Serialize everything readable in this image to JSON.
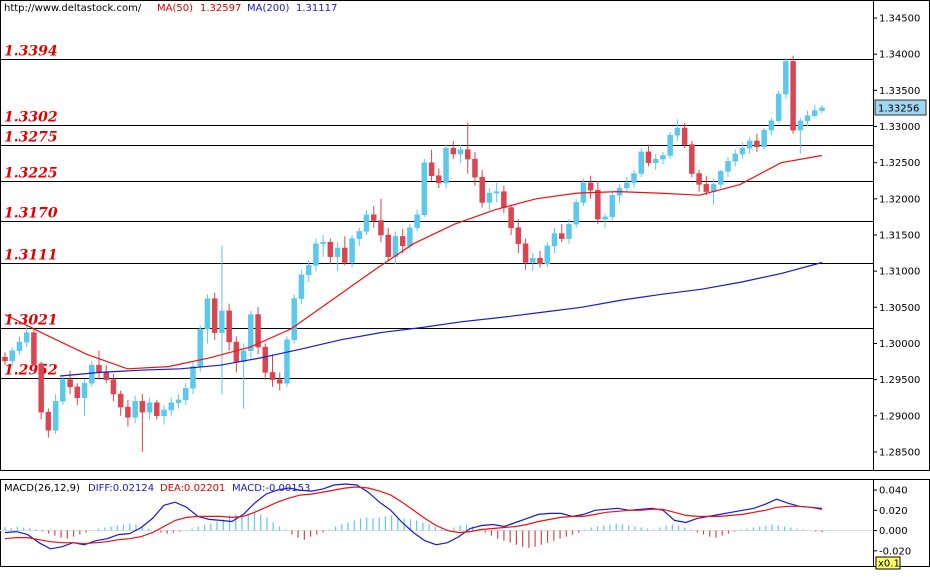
{
  "chart_data": [
    {
      "type": "candlestick",
      "header": {
        "url": "http://www.deltastock.com/",
        "ma50_label": "MA(50)",
        "ma50_value": "1.32597",
        "ma200_label": "MA(200)",
        "ma200_value": "1.31117"
      },
      "y_ticks": [
        "1.28500",
        "1.29000",
        "1.29500",
        "1.30000",
        "1.30500",
        "1.31000",
        "1.31500",
        "1.32000",
        "1.32500",
        "1.33000",
        "1.33500",
        "1.34000",
        "1.34500"
      ],
      "ylim": [
        1.2825,
        1.3475
      ],
      "current_price": "1.33256",
      "levels": [
        {
          "label": "1.3394",
          "value": 1.3394
        },
        {
          "label": "1.3302",
          "value": 1.3302
        },
        {
          "label": "1.3275",
          "value": 1.3275
        },
        {
          "label": "1.3225",
          "value": 1.3225
        },
        {
          "label": "1.3170",
          "value": 1.317
        },
        {
          "label": "1.3111",
          "value": 1.3111
        },
        {
          "label": "1.3021",
          "value": 1.3021
        },
        {
          "label": "1.2952",
          "value": 1.2952
        }
      ],
      "candles": [
        [
          1.2981,
          1.2988,
          1.297,
          1.2976
        ],
        [
          1.2976,
          1.2995,
          1.2968,
          1.299
        ],
        [
          1.299,
          1.301,
          1.2985,
          1.3002
        ],
        [
          1.3002,
          1.3025,
          1.2995,
          1.3015
        ],
        [
          1.3015,
          1.302,
          1.2968,
          1.2972
        ],
        [
          1.2972,
          1.2975,
          1.2895,
          1.2905
        ],
        [
          1.2905,
          1.291,
          1.287,
          1.288
        ],
        [
          1.288,
          1.293,
          1.2875,
          1.292
        ],
        [
          1.292,
          1.2955,
          1.2915,
          1.295
        ],
        [
          1.295,
          1.2962,
          1.293,
          1.294
        ],
        [
          1.294,
          1.2945,
          1.2915,
          1.2925
        ],
        [
          1.2925,
          1.295,
          1.29,
          1.2945
        ],
        [
          1.2945,
          1.2975,
          1.294,
          1.297
        ],
        [
          1.297,
          1.299,
          1.295,
          1.296
        ],
        [
          1.296,
          1.297,
          1.2945,
          1.295
        ],
        [
          1.295,
          1.2958,
          1.292,
          1.293
        ],
        [
          1.293,
          1.2935,
          1.29,
          1.2912
        ],
        [
          1.2912,
          1.2922,
          1.2885,
          1.2898
        ],
        [
          1.2898,
          1.2928,
          1.289,
          1.292
        ],
        [
          1.292,
          1.293,
          1.285,
          1.2905
        ],
        [
          1.2905,
          1.2925,
          1.2895,
          1.2918
        ],
        [
          1.2918,
          1.2922,
          1.2895,
          1.29
        ],
        [
          1.29,
          1.2915,
          1.2888,
          1.2908
        ],
        [
          1.2908,
          1.2925,
          1.29,
          1.2918
        ],
        [
          1.2918,
          1.293,
          1.291,
          1.2922
        ],
        [
          1.2922,
          1.2945,
          1.2915,
          1.2938
        ],
        [
          1.2938,
          1.2975,
          1.293,
          1.2968
        ],
        [
          1.2968,
          1.3025,
          1.296,
          1.302
        ],
        [
          1.302,
          1.3068,
          1.3,
          1.3062
        ],
        [
          1.3062,
          1.307,
          1.3005,
          1.3015
        ],
        [
          1.3015,
          1.3135,
          1.293,
          1.3045
        ],
        [
          1.3045,
          1.3055,
          1.299,
          1.3002
        ],
        [
          1.3002,
          1.301,
          1.296,
          1.2975
        ],
        [
          1.2975,
          1.3,
          1.291,
          1.299
        ],
        [
          1.299,
          1.3045,
          1.298,
          1.304
        ],
        [
          1.304,
          1.305,
          1.2985,
          1.2995
        ],
        [
          1.2995,
          1.3,
          1.295,
          1.296
        ],
        [
          1.296,
          1.2985,
          1.294,
          1.295
        ],
        [
          1.295,
          1.296,
          1.2935,
          1.2945
        ],
        [
          1.2945,
          1.301,
          1.294,
          1.3005
        ],
        [
          1.3005,
          1.3068,
          1.3,
          1.3062
        ],
        [
          1.3062,
          1.3102,
          1.3055,
          1.3095
        ],
        [
          1.3095,
          1.3115,
          1.3085,
          1.3108
        ],
        [
          1.3108,
          1.3145,
          1.31,
          1.3138
        ],
        [
          1.3138,
          1.315,
          1.312,
          1.314
        ],
        [
          1.314,
          1.3145,
          1.311,
          1.312
        ],
        [
          1.312,
          1.314,
          1.31,
          1.3132
        ],
        [
          1.3132,
          1.3148,
          1.3108,
          1.3112
        ],
        [
          1.3112,
          1.315,
          1.3105,
          1.3145
        ],
        [
          1.3145,
          1.316,
          1.3135,
          1.3155
        ],
        [
          1.3155,
          1.3185,
          1.315,
          1.3178
        ],
        [
          1.3178,
          1.319,
          1.316,
          1.317
        ],
        [
          1.317,
          1.32,
          1.314,
          1.315
        ],
        [
          1.315,
          1.316,
          1.3115,
          1.312
        ],
        [
          1.312,
          1.3155,
          1.311,
          1.3148
        ],
        [
          1.3148,
          1.3158,
          1.3125,
          1.3135
        ],
        [
          1.3135,
          1.3165,
          1.313,
          1.316
        ],
        [
          1.316,
          1.3185,
          1.3155,
          1.3178
        ],
        [
          1.3178,
          1.3255,
          1.3175,
          1.325
        ],
        [
          1.325,
          1.3268,
          1.3225,
          1.3232
        ],
        [
          1.3232,
          1.3242,
          1.3215,
          1.3222
        ],
        [
          1.3222,
          1.3275,
          1.3215,
          1.327
        ],
        [
          1.327,
          1.328,
          1.3255,
          1.3262
        ],
        [
          1.3262,
          1.3275,
          1.325,
          1.3268
        ],
        [
          1.3268,
          1.3305,
          1.3235,
          1.3255
        ],
        [
          1.3255,
          1.3265,
          1.3218,
          1.323
        ],
        [
          1.323,
          1.324,
          1.3188,
          1.3195
        ],
        [
          1.3195,
          1.3215,
          1.3185,
          1.3208
        ],
        [
          1.3208,
          1.3222,
          1.3195,
          1.321
        ],
        [
          1.321,
          1.3218,
          1.318,
          1.3188
        ],
        [
          1.3188,
          1.3192,
          1.315,
          1.316
        ],
        [
          1.316,
          1.3172,
          1.3125,
          1.3138
        ],
        [
          1.3138,
          1.3145,
          1.3102,
          1.3112
        ],
        [
          1.3112,
          1.3125,
          1.31,
          1.3118
        ],
        [
          1.3118,
          1.3128,
          1.3105,
          1.311
        ],
        [
          1.311,
          1.314,
          1.3105,
          1.3135
        ],
        [
          1.3135,
          1.316,
          1.3125,
          1.3152
        ],
        [
          1.3152,
          1.3165,
          1.314,
          1.3145
        ],
        [
          1.3145,
          1.3172,
          1.3138,
          1.3165
        ],
        [
          1.3165,
          1.32,
          1.316,
          1.3195
        ],
        [
          1.3195,
          1.3228,
          1.319,
          1.3222
        ],
        [
          1.3222,
          1.3232,
          1.32,
          1.3212
        ],
        [
          1.3212,
          1.3225,
          1.3165,
          1.3172
        ],
        [
          1.3172,
          1.318,
          1.316,
          1.3175
        ],
        [
          1.3175,
          1.321,
          1.317,
          1.3205
        ],
        [
          1.3205,
          1.322,
          1.3195,
          1.3215
        ],
        [
          1.3215,
          1.323,
          1.321,
          1.3222
        ],
        [
          1.3222,
          1.324,
          1.3215,
          1.3235
        ],
        [
          1.3235,
          1.327,
          1.323,
          1.3265
        ],
        [
          1.3265,
          1.3275,
          1.3245,
          1.325
        ],
        [
          1.325,
          1.3262,
          1.324,
          1.3255
        ],
        [
          1.3255,
          1.3265,
          1.3248,
          1.326
        ],
        [
          1.326,
          1.3292,
          1.3255,
          1.3288
        ],
        [
          1.3288,
          1.331,
          1.328,
          1.3298
        ],
        [
          1.3298,
          1.3305,
          1.327,
          1.3275
        ],
        [
          1.3275,
          1.328,
          1.323,
          1.3235
        ],
        [
          1.3235,
          1.324,
          1.321,
          1.322
        ],
        [
          1.322,
          1.3232,
          1.3205,
          1.321
        ],
        [
          1.321,
          1.3228,
          1.3192,
          1.322
        ],
        [
          1.322,
          1.324,
          1.3215,
          1.3238
        ],
        [
          1.3238,
          1.3258,
          1.323,
          1.3252
        ],
        [
          1.3252,
          1.3268,
          1.3245,
          1.3262
        ],
        [
          1.3262,
          1.3278,
          1.3255,
          1.327
        ],
        [
          1.327,
          1.3285,
          1.3262,
          1.328
        ],
        [
          1.328,
          1.329,
          1.3265,
          1.3272
        ],
        [
          1.3272,
          1.3298,
          1.3268,
          1.3295
        ],
        [
          1.3295,
          1.3312,
          1.3288,
          1.3308
        ],
        [
          1.3308,
          1.335,
          1.3305,
          1.3345
        ],
        [
          1.3345,
          1.3395,
          1.3338,
          1.339
        ],
        [
          1.339,
          1.3398,
          1.329,
          1.3295
        ],
        [
          1.3295,
          1.3312,
          1.3262,
          1.3308
        ],
        [
          1.3308,
          1.3322,
          1.33,
          1.3315
        ],
        [
          1.3315,
          1.333,
          1.3312,
          1.3322
        ],
        [
          1.3322,
          1.333,
          1.3318,
          1.3326
        ]
      ],
      "ma50": [
        1.304,
        1.3012,
        1.2985,
        1.2965,
        1.2968,
        1.298,
        1.2995,
        1.302,
        1.306,
        1.31,
        1.3138,
        1.3165,
        1.3185,
        1.32,
        1.3208,
        1.321,
        1.3208,
        1.3205,
        1.322,
        1.325,
        1.326
      ],
      "ma200": [
        1.2955,
        1.296,
        1.2963,
        1.2965,
        1.297,
        1.298,
        1.2992,
        1.3005,
        1.3015,
        1.3022,
        1.303,
        1.3036,
        1.3043,
        1.305,
        1.306,
        1.3068,
        1.3075,
        1.3085,
        1.3097,
        1.3112
      ],
      "macd": {
        "label": "MACD(26,12,9)",
        "diff_label": "DIFF:0.02124",
        "dea_label": "DEA:0.02201",
        "macd_label": "MACD:-0.00153",
        "y_ticks": [
          "0.040",
          "0.020",
          "0.000",
          "-0.020"
        ],
        "ylim": [
          -0.036,
          0.046
        ],
        "scale_label": "x0.1",
        "diff": [
          -0.002,
          -0.001,
          -0.004,
          -0.012,
          -0.018,
          -0.016,
          -0.012,
          -0.014,
          -0.01,
          -0.008,
          -0.004,
          -0.003,
          0.003,
          0.012,
          0.025,
          0.028,
          0.023,
          0.014,
          0.011,
          0.01,
          0.009,
          0.016,
          0.027,
          0.036,
          0.04,
          0.042,
          0.04,
          0.039,
          0.041,
          0.045,
          0.046,
          0.045,
          0.038,
          0.028,
          0.02,
          0.008,
          -0.002,
          -0.01,
          -0.014,
          -0.012,
          -0.006,
          0.002,
          0.005,
          0.006,
          0.004,
          0.008,
          0.012,
          0.016,
          0.017,
          0.017,
          0.014,
          0.016,
          0.02,
          0.021,
          0.022,
          0.02,
          0.021,
          0.022,
          0.02,
          0.01,
          0.008,
          0.012,
          0.014,
          0.016,
          0.018,
          0.02,
          0.022,
          0.026,
          0.031,
          0.027,
          0.024,
          0.023,
          0.021
        ],
        "dea": [
          -0.008,
          -0.007,
          -0.007,
          -0.009,
          -0.011,
          -0.012,
          -0.012,
          -0.013,
          -0.012,
          -0.011,
          -0.009,
          -0.008,
          -0.006,
          -0.002,
          0.004,
          0.01,
          0.013,
          0.014,
          0.014,
          0.014,
          0.013,
          0.014,
          0.018,
          0.023,
          0.028,
          0.032,
          0.035,
          0.036,
          0.038,
          0.04,
          0.042,
          0.043,
          0.042,
          0.039,
          0.035,
          0.028,
          0.02,
          0.012,
          0.005,
          0.0,
          -0.002,
          -0.001,
          0.001,
          0.002,
          0.003,
          0.004,
          0.006,
          0.009,
          0.011,
          0.013,
          0.014,
          0.014,
          0.016,
          0.018,
          0.019,
          0.02,
          0.02,
          0.021,
          0.021,
          0.018,
          0.015,
          0.014,
          0.014,
          0.014,
          0.015,
          0.016,
          0.018,
          0.02,
          0.023,
          0.024,
          0.024,
          0.023,
          0.022
        ],
        "hist": [
          0.0035,
          0.0025,
          0.0035,
          0.003,
          0.0025,
          0.0015,
          -0.001,
          -0.003,
          -0.005,
          -0.007,
          -0.008,
          -0.006,
          -0.004,
          -0.002,
          0.0,
          0.002,
          0.003,
          0.004,
          0.005,
          0.006,
          0.007,
          0.006,
          0.004,
          0.002,
          -0.001,
          -0.002,
          -0.003,
          -0.002,
          -0.001,
          0.0,
          0.002,
          0.004,
          0.006,
          0.007,
          0.009,
          0.011,
          0.015,
          0.016,
          0.014,
          0.017,
          0.018,
          0.016,
          0.013,
          0.008,
          0.004,
          0.001,
          -0.004,
          -0.007,
          -0.009,
          -0.006,
          -0.004,
          -0.002,
          0.001,
          0.004,
          0.006,
          0.008,
          0.01,
          0.012,
          0.013,
          0.012,
          0.013,
          0.014,
          0.015,
          0.013,
          0.012,
          0.011,
          0.01,
          0.008,
          0.006,
          0.004,
          0.002,
          0.001,
          0.003,
          0.005,
          0.006,
          0.004,
          0.002,
          -0.002,
          -0.005,
          -0.008,
          -0.01,
          -0.012,
          -0.014,
          -0.016,
          -0.017,
          -0.016,
          -0.014,
          -0.012,
          -0.01,
          -0.008,
          -0.006,
          -0.004,
          -0.002,
          0.001,
          0.003,
          0.004,
          0.005,
          0.006,
          0.007,
          0.006,
          0.005,
          0.004,
          0.003,
          0.002,
          0.001,
          0.003,
          0.005,
          0.006,
          0.005,
          0.003,
          0.001,
          -0.002,
          -0.004,
          -0.006,
          -0.007,
          -0.005,
          -0.003,
          -0.001,
          0.001,
          0.002,
          0.003,
          0.004,
          0.005,
          0.006,
          0.005,
          0.004,
          0.003,
          0.002,
          0.001,
          0.0,
          -0.001,
          -0.0015
        ]
      },
      "colors": {
        "up": "#5bc8ee",
        "down": "#d94550",
        "ma50": "#ee1111",
        "ma200": "#1a1acc",
        "level_text": "#e00000",
        "diff": "#1a1acc",
        "dea": "#ee1111",
        "current_bg": "#9fd6f2"
      }
    }
  ]
}
